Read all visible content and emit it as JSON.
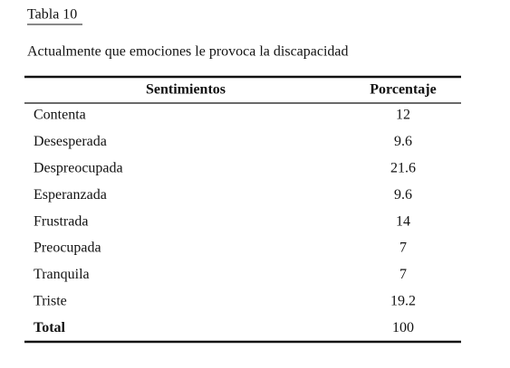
{
  "header": {
    "label": "Tabla 10",
    "title": "Actualmente que emociones le provoca la discapacidad"
  },
  "table": {
    "columns": [
      "Sentimientos",
      "Porcentaje"
    ],
    "rows": [
      [
        "Contenta",
        12
      ],
      [
        "Desesperada",
        9.6
      ],
      [
        "Despreocupada",
        21.6
      ],
      [
        "Esperanzada",
        9.6
      ],
      [
        "Frustrada",
        14
      ],
      [
        "Preocupada",
        7
      ],
      [
        "Tranquila",
        7
      ],
      [
        "Triste",
        19.2
      ],
      [
        "Total",
        100
      ]
    ]
  }
}
